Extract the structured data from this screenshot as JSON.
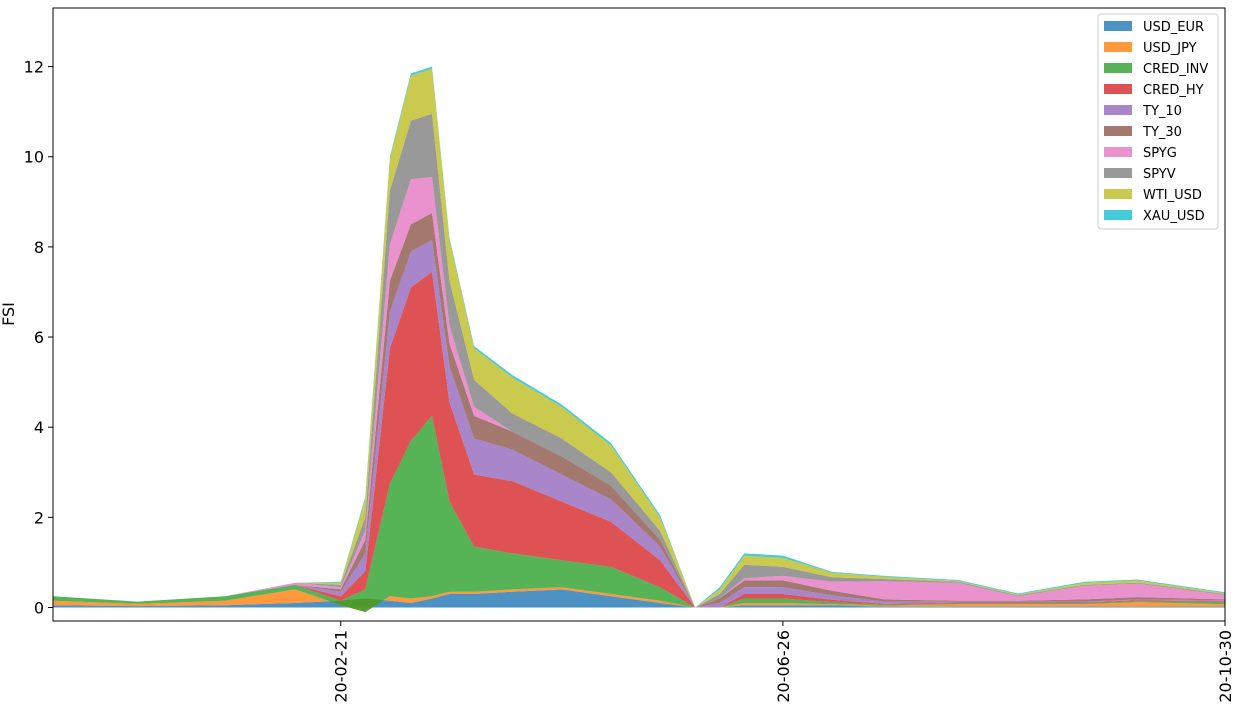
{
  "chart_data": {
    "type": "area",
    "stacked": true,
    "ylabel": "FSI",
    "ylim": [
      -0.3,
      13.3
    ],
    "yticks": [
      0,
      2,
      4,
      6,
      8,
      10,
      12
    ],
    "xlim": [
      "2019-12-01",
      "2020-10-30"
    ],
    "xticks": [
      {
        "date": "2020-02-21",
        "label": "20-02-21"
      },
      {
        "date": "2020-06-26",
        "label": "20-06-26"
      },
      {
        "date": "2020-10-30",
        "label": "20-10-30"
      }
    ],
    "legend_position": "top-right",
    "grid": false,
    "x": [
      "2019-12-01",
      "2019-12-25",
      "2020-01-19",
      "2020-02-08",
      "2020-02-21",
      "2020-02-28",
      "2020-03-06",
      "2020-03-12",
      "2020-03-18",
      "2020-03-23",
      "2020-03-30",
      "2020-04-10",
      "2020-04-24",
      "2020-05-08",
      "2020-05-22",
      "2020-06-01",
      "2020-06-08",
      "2020-06-15",
      "2020-06-26",
      "2020-07-10",
      "2020-07-25",
      "2020-08-15",
      "2020-09-01",
      "2020-09-20",
      "2020-10-05",
      "2020-10-30"
    ],
    "series": [
      {
        "name": "USD_EUR",
        "color": "#1f77b4",
        "values": [
          0.05,
          0.03,
          0.05,
          0.1,
          0.15,
          0.2,
          0.15,
          0.1,
          0.2,
          0.3,
          0.3,
          0.35,
          0.4,
          0.25,
          0.1,
          0.0,
          0.0,
          0.05,
          0.05,
          0.05,
          0.02,
          0.02,
          0.02,
          0.02,
          0.02,
          0.02
        ]
      },
      {
        "name": "USD_JPY",
        "color": "#ff7f0e",
        "values": [
          0.1,
          0.05,
          0.1,
          0.3,
          -0.1,
          -0.3,
          0.1,
          0.1,
          0.05,
          0.05,
          0.05,
          0.05,
          0.05,
          0.05,
          0.05,
          0.0,
          0.0,
          0.05,
          0.05,
          0.02,
          0.02,
          0.05,
          0.05,
          0.05,
          0.1,
          0.05
        ]
      },
      {
        "name": "CRED_INV",
        "color": "#2ca02c",
        "values": [
          0.1,
          0.05,
          0.1,
          0.1,
          0.1,
          0.5,
          2.5,
          3.5,
          4.0,
          2.0,
          1.0,
          0.8,
          0.6,
          0.6,
          0.3,
          0.0,
          0.0,
          0.1,
          0.1,
          0.05,
          0.02,
          0.02,
          0.02,
          0.02,
          0.02,
          0.05
        ]
      },
      {
        "name": "CRED_HY",
        "color": "#d62728",
        "values": [
          0.0,
          0.0,
          0.0,
          0.0,
          0.1,
          0.4,
          3.0,
          3.4,
          3.2,
          2.2,
          1.6,
          1.6,
          1.3,
          1.0,
          0.6,
          0.0,
          0.0,
          0.1,
          0.1,
          0.05,
          0.02,
          0.02,
          0.02,
          0.02,
          0.02,
          0.02
        ]
      },
      {
        "name": "TY_10",
        "color": "#9467bd",
        "values": [
          0.0,
          0.0,
          0.0,
          0.0,
          0.1,
          0.4,
          0.8,
          0.8,
          0.7,
          0.8,
          0.8,
          0.7,
          0.6,
          0.5,
          0.3,
          0.0,
          0.1,
          0.15,
          0.15,
          0.1,
          0.05,
          0.02,
          0.02,
          0.02,
          0.02,
          0.02
        ]
      },
      {
        "name": "TY_30",
        "color": "#8c564b",
        "values": [
          0.0,
          0.0,
          0.0,
          0.0,
          0.05,
          0.3,
          0.7,
          0.6,
          0.6,
          0.5,
          0.5,
          0.4,
          0.4,
          0.3,
          0.15,
          0.0,
          0.1,
          0.15,
          0.15,
          0.1,
          0.05,
          0.02,
          0.02,
          0.05,
          0.05,
          0.02
        ]
      },
      {
        "name": "SPYG",
        "color": "#e377c2",
        "values": [
          0.0,
          0.0,
          0.0,
          0.05,
          0.05,
          0.2,
          0.8,
          1.0,
          0.8,
          0.4,
          0.2,
          0.0,
          0.0,
          0.0,
          0.0,
          0.0,
          0.0,
          0.05,
          0.1,
          0.2,
          0.4,
          0.4,
          0.1,
          0.3,
          0.3,
          0.1
        ]
      },
      {
        "name": "SPYV",
        "color": "#7f7f7f",
        "values": [
          0.0,
          0.0,
          0.0,
          0.0,
          0.05,
          0.3,
          1.2,
          1.3,
          1.4,
          1.0,
          0.6,
          0.4,
          0.4,
          0.3,
          0.2,
          0.0,
          0.1,
          0.3,
          0.2,
          0.1,
          0.05,
          0.02,
          0.02,
          0.02,
          0.02,
          0.02
        ]
      },
      {
        "name": "WTI_USD",
        "color": "#bcbd22",
        "values": [
          0.0,
          0.0,
          0.0,
          0.0,
          0.05,
          0.4,
          0.7,
          1.0,
          1.0,
          0.9,
          0.7,
          0.8,
          0.7,
          0.6,
          0.3,
          0.0,
          0.1,
          0.2,
          0.2,
          0.1,
          0.05,
          0.02,
          0.02,
          0.05,
          0.05,
          0.02
        ]
      },
      {
        "name": "XAU_USD",
        "color": "#17becf",
        "values": [
          0.0,
          0.0,
          0.0,
          0.0,
          0.02,
          0.05,
          0.05,
          0.05,
          0.05,
          0.05,
          0.05,
          0.05,
          0.05,
          0.05,
          0.05,
          0.0,
          0.05,
          0.05,
          0.05,
          0.02,
          0.02,
          0.02,
          0.02,
          0.02,
          0.02,
          0.02
        ]
      }
    ]
  }
}
